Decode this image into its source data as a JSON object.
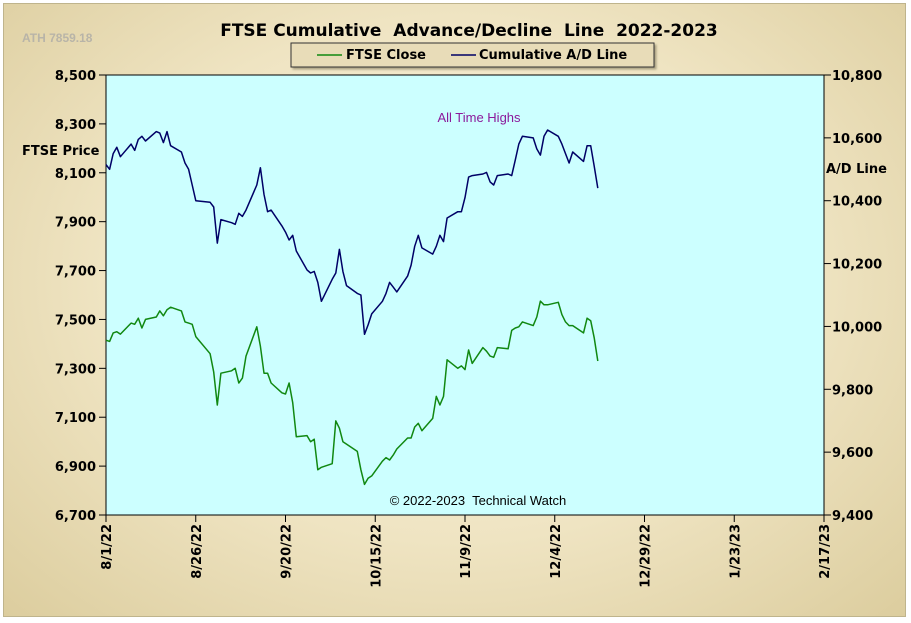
{
  "chart_data": {
    "type": "line",
    "title": "FTSE Cumulative  Advance/Decline  Line  2022-2023",
    "ath_label": "ATH 7859.18",
    "ylabel_left": "FTSE Price",
    "ylabel_right": "A/D Line",
    "ylim_left": [
      6700,
      8500
    ],
    "ylim_right": [
      9400,
      10800
    ],
    "yticks_left": [
      6700,
      6900,
      7100,
      7300,
      7500,
      7700,
      7900,
      8100,
      8300,
      8500
    ],
    "yticks_left_labels": [
      "6,700",
      "6,900",
      "7,100",
      "7,300",
      "7,500",
      "7,700",
      "7,900",
      "8,100",
      "8,300",
      "8,500"
    ],
    "yticks_right": [
      9400,
      9600,
      9800,
      10000,
      10200,
      10400,
      10600,
      10800
    ],
    "yticks_right_labels": [
      "9,400",
      "9,600",
      "9,800",
      "10,000",
      "10,200",
      "10,400",
      "10,600",
      "10,800"
    ],
    "xlim": [
      "2022-08-01",
      "2023-02-17"
    ],
    "xticks": [
      "2022-08-01",
      "2022-08-26",
      "2022-09-20",
      "2022-10-15",
      "2022-11-09",
      "2022-12-04",
      "2022-12-29",
      "2023-01-23",
      "2023-02-17"
    ],
    "xtick_labels": [
      "8/1/22",
      "8/26/22",
      "9/20/22",
      "10/15/22",
      "11/9/22",
      "12/4/22",
      "12/29/22",
      "1/23/23",
      "2/17/23"
    ],
    "legend_position": "top-center",
    "grid": false,
    "annotations": {
      "ath_note": "All Time Highs",
      "copyright": "© 2022-2023  Technical Watch"
    },
    "colors": {
      "plot_bg": "#ccffff",
      "ftse": "#118811",
      "ad": "#000066",
      "legend_bg": "#e8dcb8"
    },
    "series": [
      {
        "name": "FTSE Close",
        "axis": "left",
        "color": "#118811",
        "points": [
          [
            "2022-08-01",
            7415
          ],
          [
            "2022-08-02",
            7410
          ],
          [
            "2022-08-03",
            7445
          ],
          [
            "2022-08-04",
            7450
          ],
          [
            "2022-08-05",
            7440
          ],
          [
            "2022-08-08",
            7485
          ],
          [
            "2022-08-09",
            7480
          ],
          [
            "2022-08-10",
            7505
          ],
          [
            "2022-08-11",
            7465
          ],
          [
            "2022-08-12",
            7500
          ],
          [
            "2022-08-15",
            7510
          ],
          [
            "2022-08-16",
            7535
          ],
          [
            "2022-08-17",
            7515
          ],
          [
            "2022-08-18",
            7540
          ],
          [
            "2022-08-19",
            7550
          ],
          [
            "2022-08-22",
            7535
          ],
          [
            "2022-08-23",
            7490
          ],
          [
            "2022-08-24",
            7485
          ],
          [
            "2022-08-25",
            7480
          ],
          [
            "2022-08-26",
            7430
          ],
          [
            "2022-08-30",
            7360
          ],
          [
            "2022-08-31",
            7285
          ],
          [
            "2022-09-01",
            7150
          ],
          [
            "2022-09-02",
            7280
          ],
          [
            "2022-09-05",
            7290
          ],
          [
            "2022-09-06",
            7300
          ],
          [
            "2022-09-07",
            7240
          ],
          [
            "2022-09-08",
            7260
          ],
          [
            "2022-09-09",
            7350
          ],
          [
            "2022-09-12",
            7470
          ],
          [
            "2022-09-13",
            7390
          ],
          [
            "2022-09-14",
            7280
          ],
          [
            "2022-09-15",
            7280
          ],
          [
            "2022-09-16",
            7240
          ],
          [
            "2022-09-19",
            7200
          ],
          [
            "2022-09-20",
            7195
          ],
          [
            "2022-09-21",
            7240
          ],
          [
            "2022-09-22",
            7160
          ],
          [
            "2022-09-23",
            7020
          ],
          [
            "2022-09-26",
            7025
          ],
          [
            "2022-09-27",
            7000
          ],
          [
            "2022-09-28",
            7010
          ],
          [
            "2022-09-29",
            6885
          ],
          [
            "2022-09-30",
            6895
          ],
          [
            "2022-10-03",
            6910
          ],
          [
            "2022-10-04",
            7085
          ],
          [
            "2022-10-05",
            7055
          ],
          [
            "2022-10-06",
            7000
          ],
          [
            "2022-10-07",
            6990
          ],
          [
            "2022-10-10",
            6960
          ],
          [
            "2022-10-11",
            6885
          ],
          [
            "2022-10-12",
            6825
          ],
          [
            "2022-10-13",
            6850
          ],
          [
            "2022-10-14",
            6860
          ],
          [
            "2022-10-17",
            6920
          ],
          [
            "2022-10-18",
            6935
          ],
          [
            "2022-10-19",
            6925
          ],
          [
            "2022-10-20",
            6945
          ],
          [
            "2022-10-21",
            6970
          ],
          [
            "2022-10-24",
            7015
          ],
          [
            "2022-10-25",
            7015
          ],
          [
            "2022-10-26",
            7060
          ],
          [
            "2022-10-27",
            7075
          ],
          [
            "2022-10-28",
            7045
          ],
          [
            "2022-10-31",
            7095
          ],
          [
            "2022-11-01",
            7185
          ],
          [
            "2022-11-02",
            7150
          ],
          [
            "2022-11-03",
            7185
          ],
          [
            "2022-11-04",
            7335
          ],
          [
            "2022-11-07",
            7300
          ],
          [
            "2022-11-08",
            7310
          ],
          [
            "2022-11-09",
            7295
          ],
          [
            "2022-11-10",
            7375
          ],
          [
            "2022-11-11",
            7320
          ],
          [
            "2022-11-14",
            7385
          ],
          [
            "2022-11-15",
            7370
          ],
          [
            "2022-11-16",
            7350
          ],
          [
            "2022-11-17",
            7345
          ],
          [
            "2022-11-18",
            7385
          ],
          [
            "2022-11-21",
            7380
          ],
          [
            "2022-11-22",
            7455
          ],
          [
            "2022-11-23",
            7465
          ],
          [
            "2022-11-24",
            7470
          ],
          [
            "2022-11-25",
            7490
          ],
          [
            "2022-11-28",
            7475
          ],
          [
            "2022-11-29",
            7510
          ],
          [
            "2022-11-30",
            7575
          ],
          [
            "2022-12-01",
            7560
          ],
          [
            "2022-12-02",
            7560
          ],
          [
            "2022-12-05",
            7570
          ],
          [
            "2022-12-06",
            7520
          ],
          [
            "2022-12-07",
            7490
          ],
          [
            "2022-12-08",
            7475
          ],
          [
            "2022-12-09",
            7475
          ],
          [
            "2022-12-12",
            7445
          ],
          [
            "2022-12-13",
            7505
          ],
          [
            "2022-12-14",
            7495
          ],
          [
            "2022-12-15",
            7425
          ],
          [
            "2022-12-16",
            7330
          ]
        ]
      },
      {
        "name": "Cumulative A/D Line",
        "axis": "right",
        "color": "#000066",
        "points": [
          [
            "2022-08-01",
            10515
          ],
          [
            "2022-08-02",
            10500
          ],
          [
            "2022-08-03",
            10550
          ],
          [
            "2022-08-04",
            10570
          ],
          [
            "2022-08-05",
            10540
          ],
          [
            "2022-08-08",
            10580
          ],
          [
            "2022-08-09",
            10560
          ],
          [
            "2022-08-10",
            10595
          ],
          [
            "2022-08-11",
            10605
          ],
          [
            "2022-08-12",
            10590
          ],
          [
            "2022-08-15",
            10620
          ],
          [
            "2022-08-16",
            10615
          ],
          [
            "2022-08-17",
            10585
          ],
          [
            "2022-08-18",
            10620
          ],
          [
            "2022-08-19",
            10575
          ],
          [
            "2022-08-22",
            10555
          ],
          [
            "2022-08-23",
            10520
          ],
          [
            "2022-08-24",
            10500
          ],
          [
            "2022-08-25",
            10450
          ],
          [
            "2022-08-26",
            10400
          ],
          [
            "2022-08-30",
            10395
          ],
          [
            "2022-08-31",
            10380
          ],
          [
            "2022-09-01",
            10265
          ],
          [
            "2022-09-02",
            10340
          ],
          [
            "2022-09-05",
            10330
          ],
          [
            "2022-09-06",
            10325
          ],
          [
            "2022-09-07",
            10360
          ],
          [
            "2022-09-08",
            10350
          ],
          [
            "2022-09-09",
            10370
          ],
          [
            "2022-09-12",
            10450
          ],
          [
            "2022-09-13",
            10505
          ],
          [
            "2022-09-14",
            10420
          ],
          [
            "2022-09-15",
            10365
          ],
          [
            "2022-09-16",
            10370
          ],
          [
            "2022-09-19",
            10320
          ],
          [
            "2022-09-20",
            10300
          ],
          [
            "2022-09-21",
            10275
          ],
          [
            "2022-09-22",
            10290
          ],
          [
            "2022-09-23",
            10240
          ],
          [
            "2022-09-26",
            10180
          ],
          [
            "2022-09-27",
            10170
          ],
          [
            "2022-09-28",
            10175
          ],
          [
            "2022-09-29",
            10140
          ],
          [
            "2022-09-30",
            10080
          ],
          [
            "2022-10-03",
            10150
          ],
          [
            "2022-10-04",
            10170
          ],
          [
            "2022-10-05",
            10245
          ],
          [
            "2022-10-06",
            10175
          ],
          [
            "2022-10-07",
            10130
          ],
          [
            "2022-10-10",
            10105
          ],
          [
            "2022-10-11",
            10100
          ],
          [
            "2022-10-12",
            9975
          ],
          [
            "2022-10-13",
            10005
          ],
          [
            "2022-10-14",
            10040
          ],
          [
            "2022-10-17",
            10080
          ],
          [
            "2022-10-18",
            10105
          ],
          [
            "2022-10-19",
            10140
          ],
          [
            "2022-10-20",
            10125
          ],
          [
            "2022-10-21",
            10110
          ],
          [
            "2022-10-24",
            10160
          ],
          [
            "2022-10-25",
            10195
          ],
          [
            "2022-10-26",
            10255
          ],
          [
            "2022-10-27",
            10290
          ],
          [
            "2022-10-28",
            10250
          ],
          [
            "2022-10-31",
            10230
          ],
          [
            "2022-11-01",
            10255
          ],
          [
            "2022-11-02",
            10290
          ],
          [
            "2022-11-03",
            10270
          ],
          [
            "2022-11-04",
            10345
          ],
          [
            "2022-11-07",
            10365
          ],
          [
            "2022-11-08",
            10365
          ],
          [
            "2022-11-09",
            10410
          ],
          [
            "2022-11-10",
            10475
          ],
          [
            "2022-11-11",
            10480
          ],
          [
            "2022-11-14",
            10485
          ],
          [
            "2022-11-15",
            10490
          ],
          [
            "2022-11-16",
            10460
          ],
          [
            "2022-11-17",
            10450
          ],
          [
            "2022-11-18",
            10480
          ],
          [
            "2022-11-21",
            10485
          ],
          [
            "2022-11-22",
            10480
          ],
          [
            "2022-11-23",
            10530
          ],
          [
            "2022-11-24",
            10580
          ],
          [
            "2022-11-25",
            10605
          ],
          [
            "2022-11-28",
            10600
          ],
          [
            "2022-11-29",
            10565
          ],
          [
            "2022-11-30",
            10545
          ],
          [
            "2022-12-01",
            10605
          ],
          [
            "2022-12-02",
            10625
          ],
          [
            "2022-12-05",
            10605
          ],
          [
            "2022-12-06",
            10580
          ],
          [
            "2022-12-07",
            10550
          ],
          [
            "2022-12-08",
            10520
          ],
          [
            "2022-12-09",
            10555
          ],
          [
            "2022-12-12",
            10525
          ],
          [
            "2022-12-13",
            10575
          ],
          [
            "2022-12-14",
            10575
          ],
          [
            "2022-12-15",
            10510
          ],
          [
            "2022-12-16",
            10440
          ]
        ]
      }
    ]
  }
}
